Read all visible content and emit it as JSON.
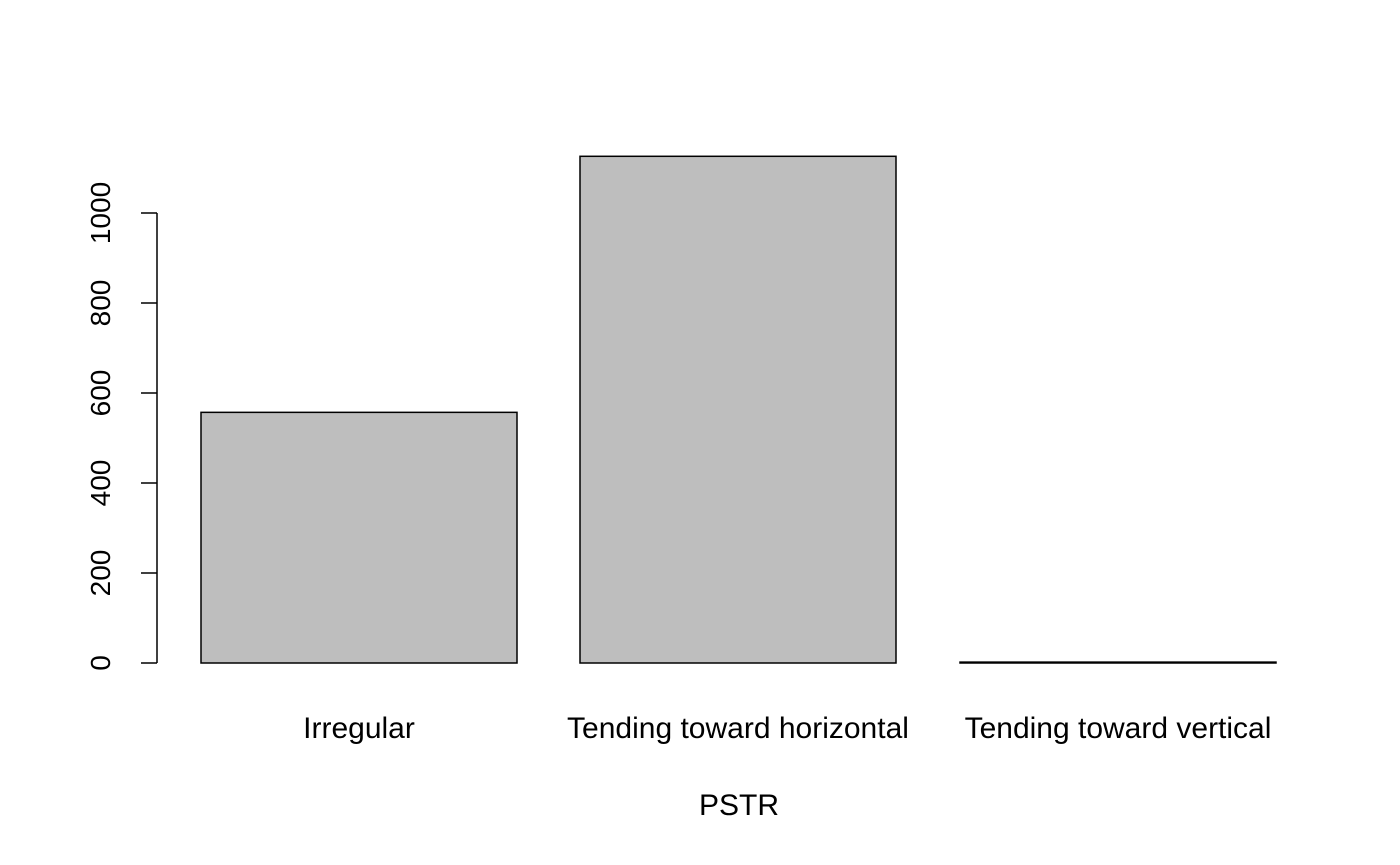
{
  "chart_data": {
    "type": "bar",
    "title": "",
    "xlabel": "PSTR",
    "ylabel": "",
    "categories": [
      "Irregular",
      "Tending toward horizontal",
      "Tending toward vertical"
    ],
    "values": [
      557,
      1126,
      2
    ],
    "ylim": [
      0,
      1126
    ],
    "yticks": [
      "0",
      "200",
      "400",
      "600",
      "800",
      "1000"
    ],
    "bar_color": "#bebebe",
    "grid": false,
    "legend": "none"
  }
}
